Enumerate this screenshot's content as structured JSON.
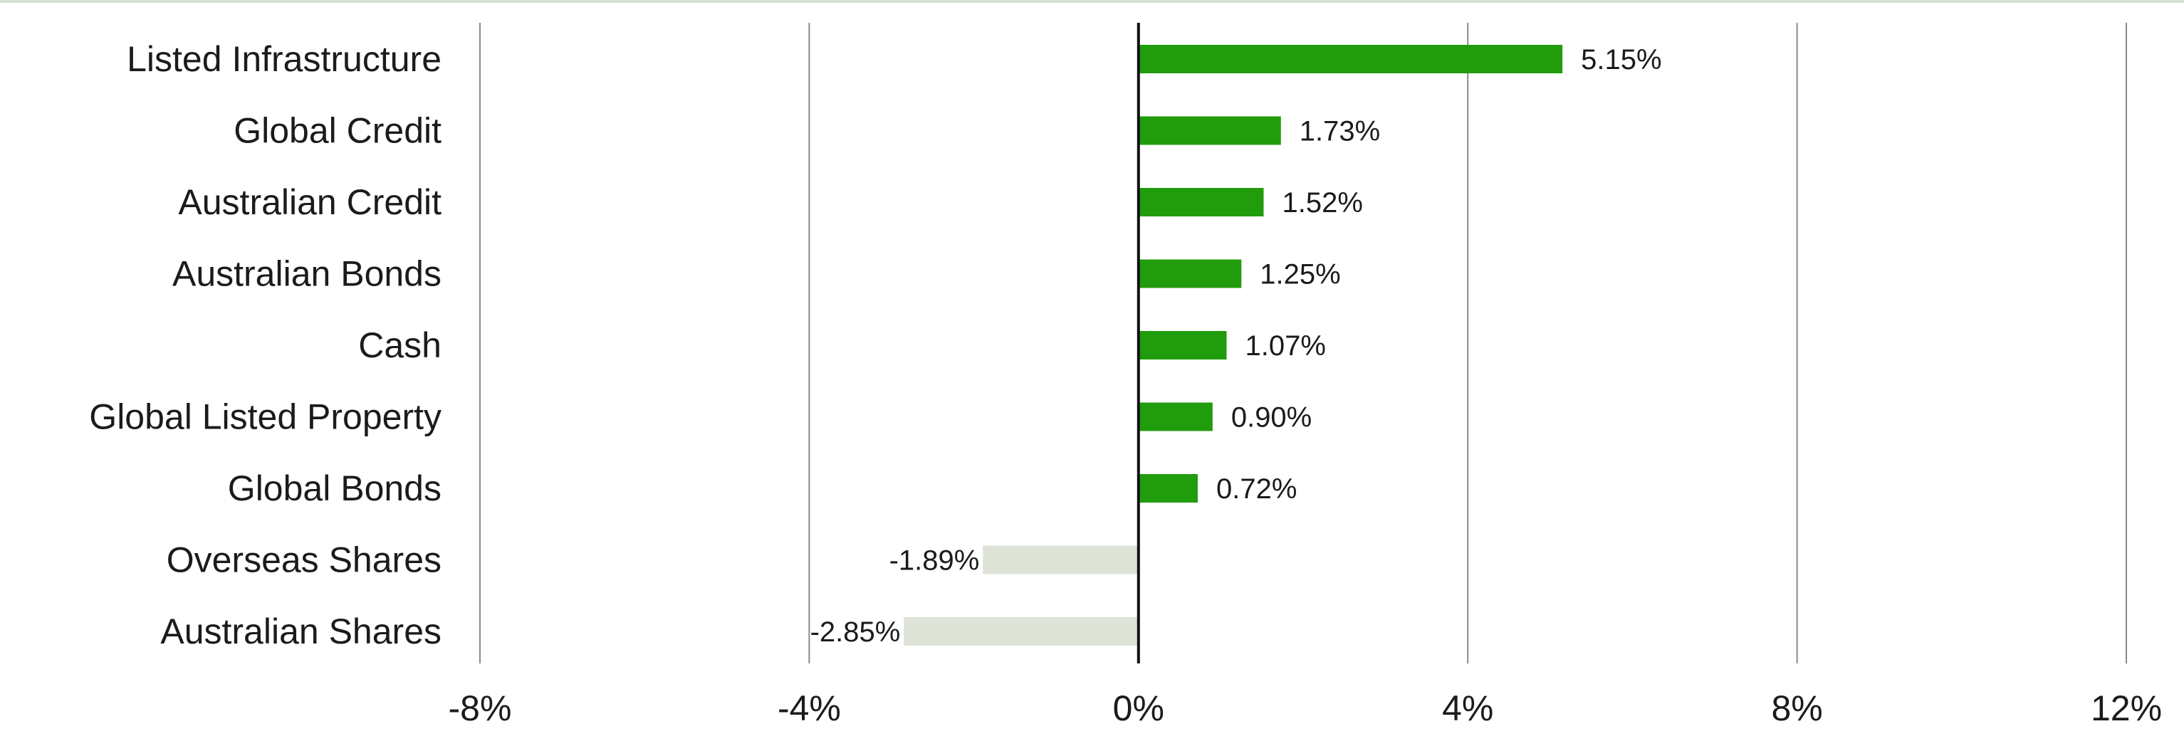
{
  "chart_data": {
    "type": "bar",
    "orientation": "horizontal",
    "title": "",
    "xlabel": "",
    "ylabel": "",
    "categories": [
      "Listed Infrastructure",
      "Global Credit",
      "Australian Credit",
      "Australian Bonds",
      "Cash",
      "Global Listed Property",
      "Global Bonds",
      "Overseas Shares",
      "Australian Shares"
    ],
    "values": [
      5.15,
      1.73,
      1.52,
      1.25,
      1.07,
      0.9,
      0.72,
      -1.89,
      -2.85
    ],
    "value_labels": [
      "5.15%",
      "1.73%",
      "1.52%",
      "1.25%",
      "1.07%",
      "0.90%",
      "0.72%",
      "-1.89%",
      "-2.85%"
    ],
    "xlim": [
      -8,
      12
    ],
    "xticks": [
      -8,
      -4,
      0,
      4,
      8,
      12
    ],
    "xtick_labels": [
      "-8%",
      "-4%",
      "0%",
      "4%",
      "8%",
      "12%"
    ],
    "grid": "vertical",
    "legend": "none",
    "colors": {
      "positive": "#219c0c",
      "negative": "#dde3d6",
      "zero_line": "#111111",
      "grid": "#8a8a8a",
      "text": "#1b1b1b",
      "top_rule": "#d6e0d3"
    }
  }
}
